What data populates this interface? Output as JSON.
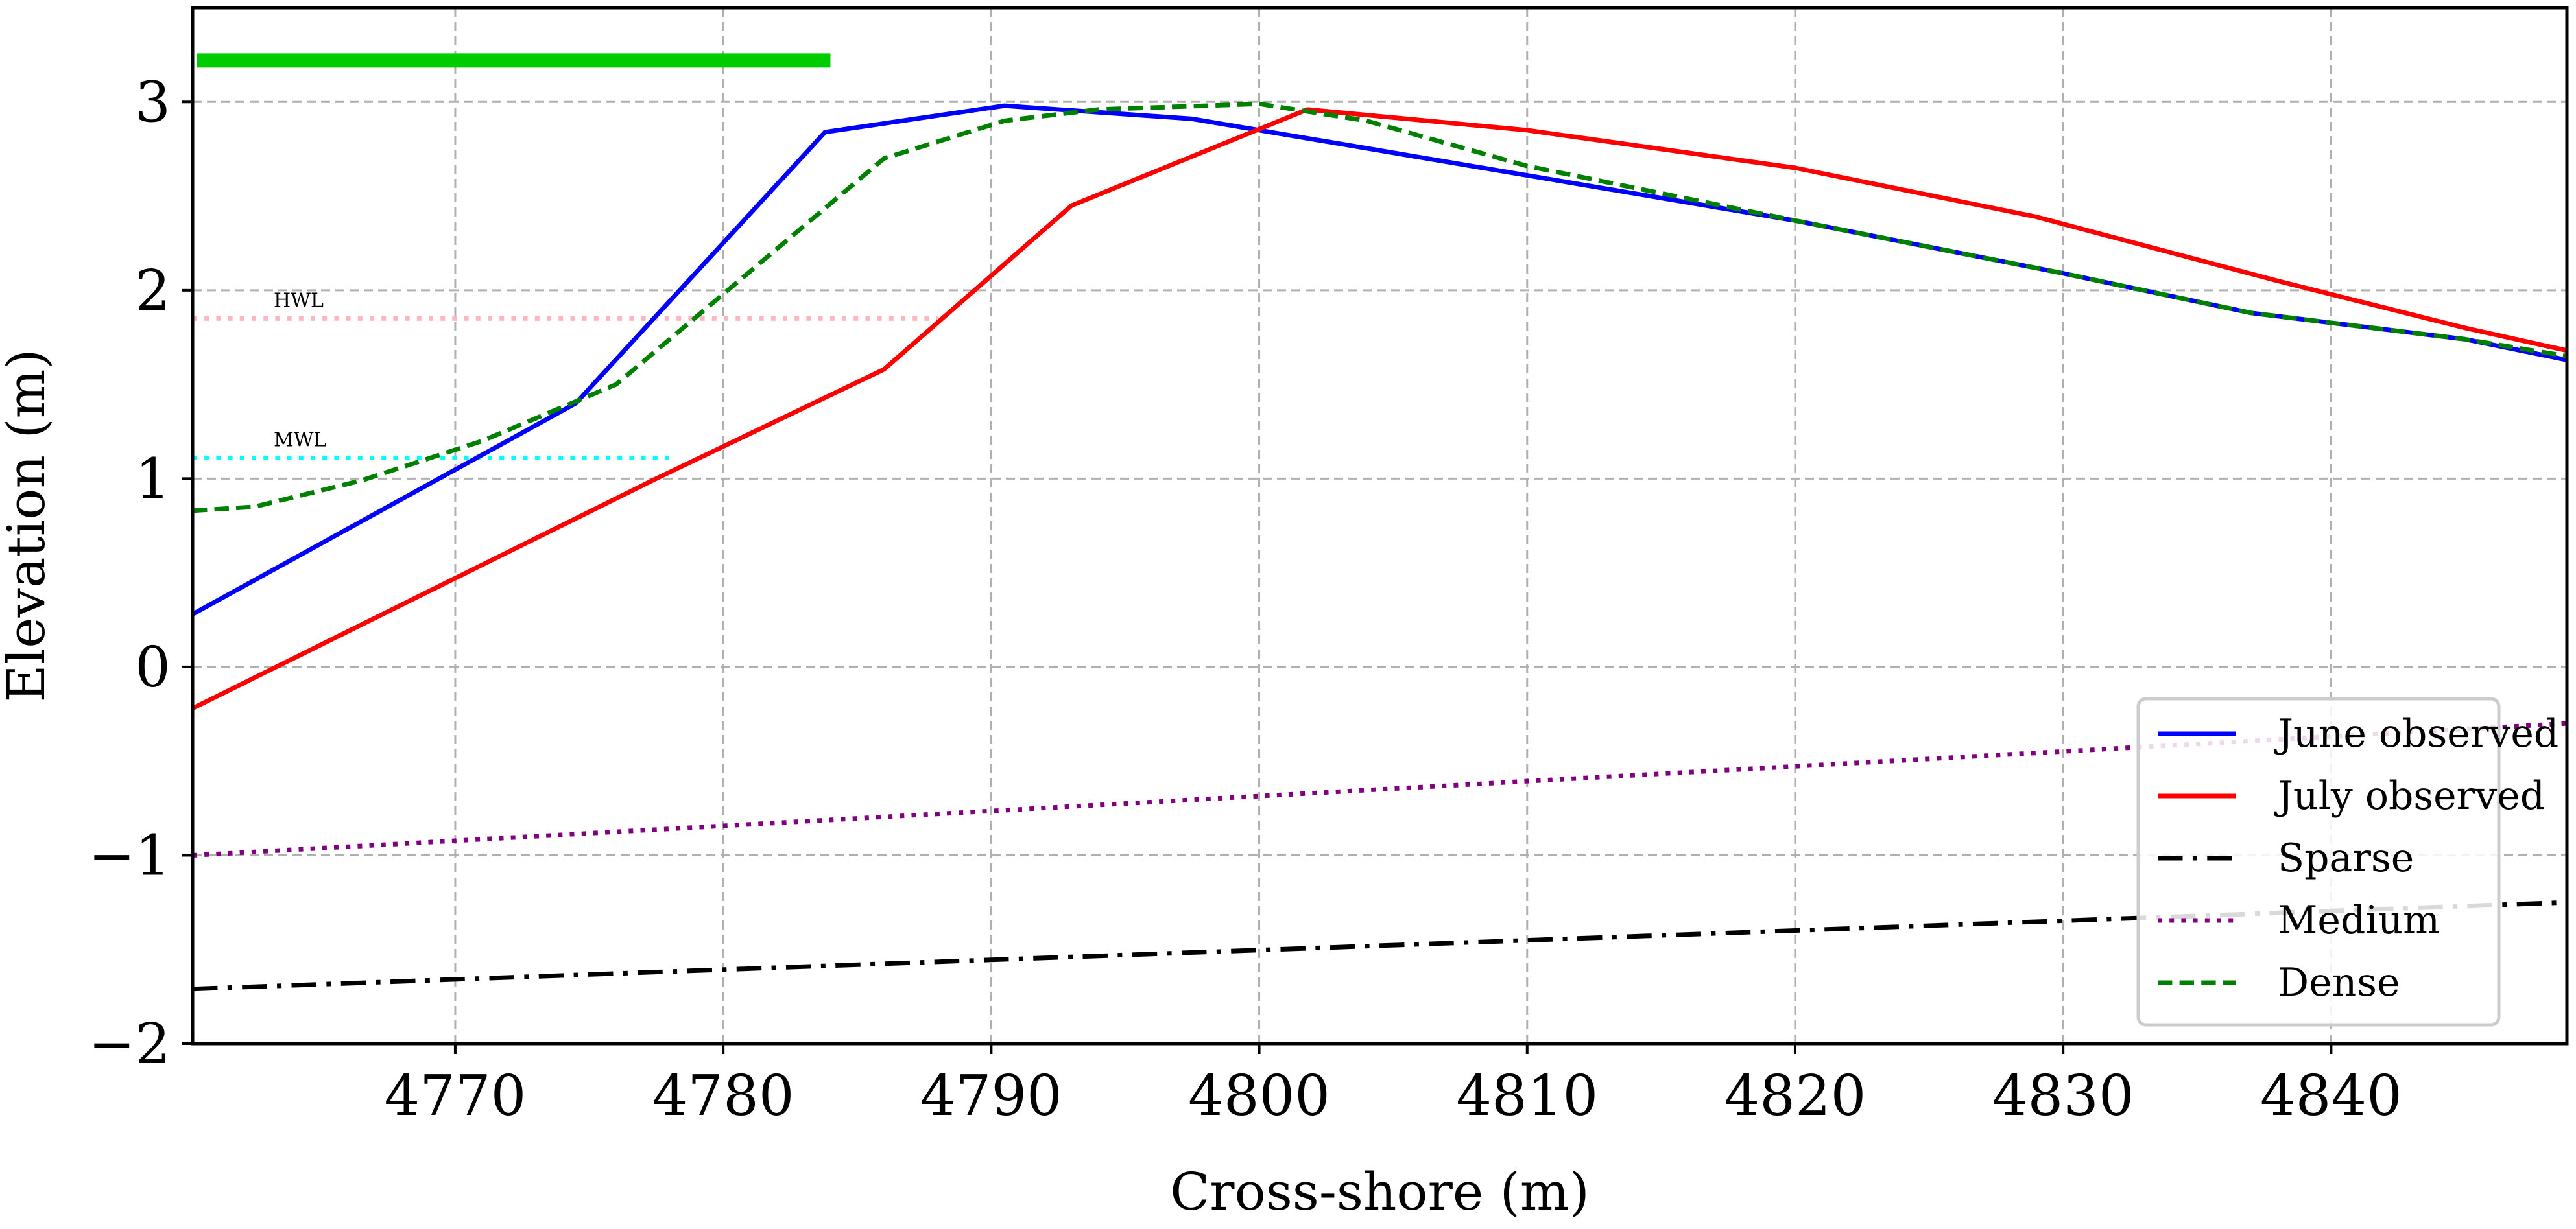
{
  "chart_data": {
    "type": "line",
    "title": "",
    "xlabel": "Cross-shore (m)",
    "ylabel": "Elevation (m)",
    "xlim": [
      4760.2,
      4848.8
    ],
    "ylim": [
      -2,
      3.5
    ],
    "xticks": [
      4770,
      4780,
      4790,
      4800,
      4810,
      4820,
      4830,
      4840
    ],
    "xtick_labels": [
      "4770",
      "4780",
      "4790",
      "4800",
      "4810",
      "4820",
      "4830",
      "4840"
    ],
    "yticks": [
      -2,
      -1,
      0,
      1,
      2,
      3
    ],
    "ytick_labels": [
      "−2",
      "−1",
      "0",
      "1",
      "2",
      "3"
    ],
    "grid": true,
    "legend_position": "lower-right",
    "series": [
      {
        "name": "June observed",
        "color": "#0000ff",
        "style": "solid",
        "x": [
          4760.2,
          4774.5,
          4783.8,
          4790.5,
          4797.5,
          4810,
          4820,
          4830,
          4837,
          4845,
          4848.8
        ],
        "y": [
          0.28,
          1.4,
          2.84,
          2.98,
          2.91,
          2.61,
          2.37,
          2.09,
          1.88,
          1.74,
          1.63
        ]
      },
      {
        "name": "July observed",
        "color": "#ff0000",
        "style": "solid",
        "x": [
          4760.2,
          4777.5,
          4786,
          4793,
          4801.8,
          4810,
          4820,
          4829,
          4838,
          4845,
          4848.8
        ],
        "y": [
          -0.22,
          1.0,
          1.58,
          2.45,
          2.96,
          2.85,
          2.65,
          2.39,
          2.05,
          1.8,
          1.68
        ]
      },
      {
        "name": "Sparse",
        "color": "#000000",
        "style": "dashdot",
        "x": [
          4760.2,
          4848.8
        ],
        "y": [
          -1.71,
          -1.25
        ]
      },
      {
        "name": "Medium",
        "color": "#800080",
        "style": "dotted",
        "x": [
          4760.2,
          4848.8
        ],
        "y": [
          -1.0,
          -0.3
        ]
      },
      {
        "name": "Dense",
        "color": "#008000",
        "style": "dashed",
        "x": [
          4760.2,
          4762.5,
          4766.5,
          4771,
          4776,
          4781,
          4786,
          4790.5,
          4794,
          4800,
          4804,
          4810,
          4820,
          4830,
          4837,
          4845,
          4848.8
        ],
        "y": [
          0.83,
          0.85,
          0.99,
          1.2,
          1.5,
          2.1,
          2.7,
          2.9,
          2.96,
          2.99,
          2.9,
          2.66,
          2.37,
          2.09,
          1.88,
          1.74,
          1.65
        ]
      }
    ],
    "annotations": [
      {
        "label": "HWL",
        "color": "#ffb6c1",
        "style": "dotted",
        "y": 1.85,
        "x": [
          4760.2,
          4788
        ]
      },
      {
        "label": "MWL",
        "color": "#00ffff",
        "style": "dotted",
        "y": 1.11,
        "x": [
          4760.2,
          4778
        ]
      }
    ],
    "bar_marker": {
      "color": "#00cc00",
      "y": 3.22,
      "x": [
        4760.2,
        4784
      ]
    }
  }
}
